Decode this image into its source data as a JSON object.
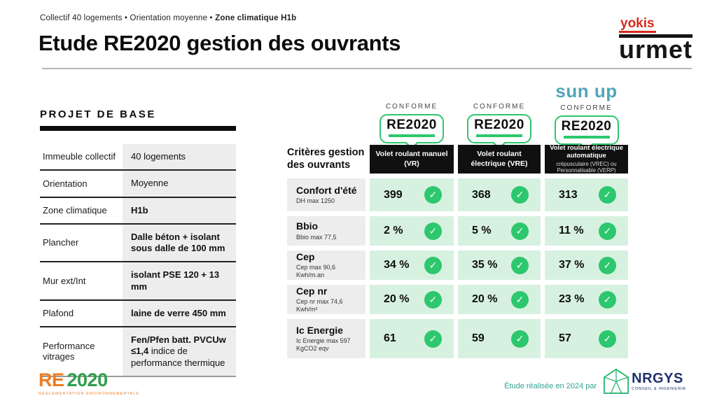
{
  "header": {
    "breadcrumb_regular": "Collectif 40 logements • Orientation moyenne • ",
    "breadcrumb_bold": "Zone climatique H1b",
    "title": "Etude RE2020 gestion des ouvrants"
  },
  "brand": {
    "yokis": "yokis",
    "urmet": "urmet"
  },
  "project": {
    "heading": "PROJET DE BASE",
    "rows": [
      {
        "label": "Immeuble collectif",
        "value_parts": [
          {
            "text": "40 logements",
            "bold": false
          }
        ]
      },
      {
        "label": "Orientation",
        "value_parts": [
          {
            "text": "Moyenne",
            "bold": false
          }
        ]
      },
      {
        "label": "Zone climatique",
        "value_parts": [
          {
            "text": "H1b",
            "bold": true
          }
        ]
      },
      {
        "label": "Plancher",
        "value_parts": [
          {
            "text": "Dalle béton + isolant sous dalle de 100 mm",
            "bold": true
          }
        ]
      },
      {
        "label": "Mur ext/Int",
        "value_parts": [
          {
            "text": "isolant PSE 120 + 13 mm",
            "bold": true
          }
        ]
      },
      {
        "label": "Plafond",
        "value_parts": [
          {
            "text": "laine de verre 450 mm",
            "bold": true
          }
        ]
      },
      {
        "label": "Performance vitrages",
        "value_parts": [
          {
            "text": "Fen/Pfen batt. PVCUw ≤1,4",
            "bold": true
          },
          {
            "text": " indice de performance thermique",
            "bold": false
          }
        ]
      }
    ]
  },
  "comparison": {
    "criteria_heading": "Critères gestion des ouvrants",
    "sunup_logo": "sun up",
    "conforme_label": "CONFORME",
    "badge_label": "RE2020",
    "columns": [
      {
        "title": "Volet roulant manuel (VR)",
        "subtitle": ""
      },
      {
        "title": "Volet roulant électrique (VRE)",
        "subtitle": ""
      },
      {
        "title": "Volet roulant électrique automatique",
        "subtitle": "crépusculaire (VREC) ou Personnalisable (VERP)"
      }
    ],
    "rows": [
      {
        "name": "Confort d'été",
        "limit": "DH max 1250",
        "values": [
          "399",
          "368",
          "313"
        ]
      },
      {
        "name": "Bbio",
        "limit": "Bbio max 77,5",
        "values": [
          "2 %",
          "5 %",
          "11 %"
        ]
      },
      {
        "name": "Cep",
        "limit": "Cep max 90,6 Kwh/m.an",
        "values": [
          "34 %",
          "35 %",
          "37 %"
        ]
      },
      {
        "name": "Cep nr",
        "limit": "Cep nr max 74,6 Kwh/m²",
        "values": [
          "20 %",
          "20 %",
          "23 %"
        ]
      },
      {
        "name": "Ic Energie",
        "limit": "Ic Energie max 597 KgCO2 eqv",
        "values": [
          "61",
          "59",
          "57"
        ]
      }
    ]
  },
  "footer": {
    "re2020_re": "RE",
    "re2020_year": "2020",
    "re2020_sub": "RÉGLEMENTATION ENVIRONNEMENTALE",
    "credit": "Étude réalisée en 2024 par",
    "nrgys_name": "NRGYS",
    "nrgys_sub": "CONSEIL & INGENIERIE"
  },
  "icons": {
    "check": "✓"
  },
  "colors": {
    "check_green": "#2dc76d",
    "cell_green": "#d7f1e1",
    "cell_gray": "#ededed",
    "yokis_red": "#d52b1e",
    "sunup_teal": "#4fa6b8",
    "re_orange": "#f07c21",
    "re_green": "#2f9e4d",
    "credit_teal": "#35a294",
    "nrgys_navy": "#20306e"
  }
}
